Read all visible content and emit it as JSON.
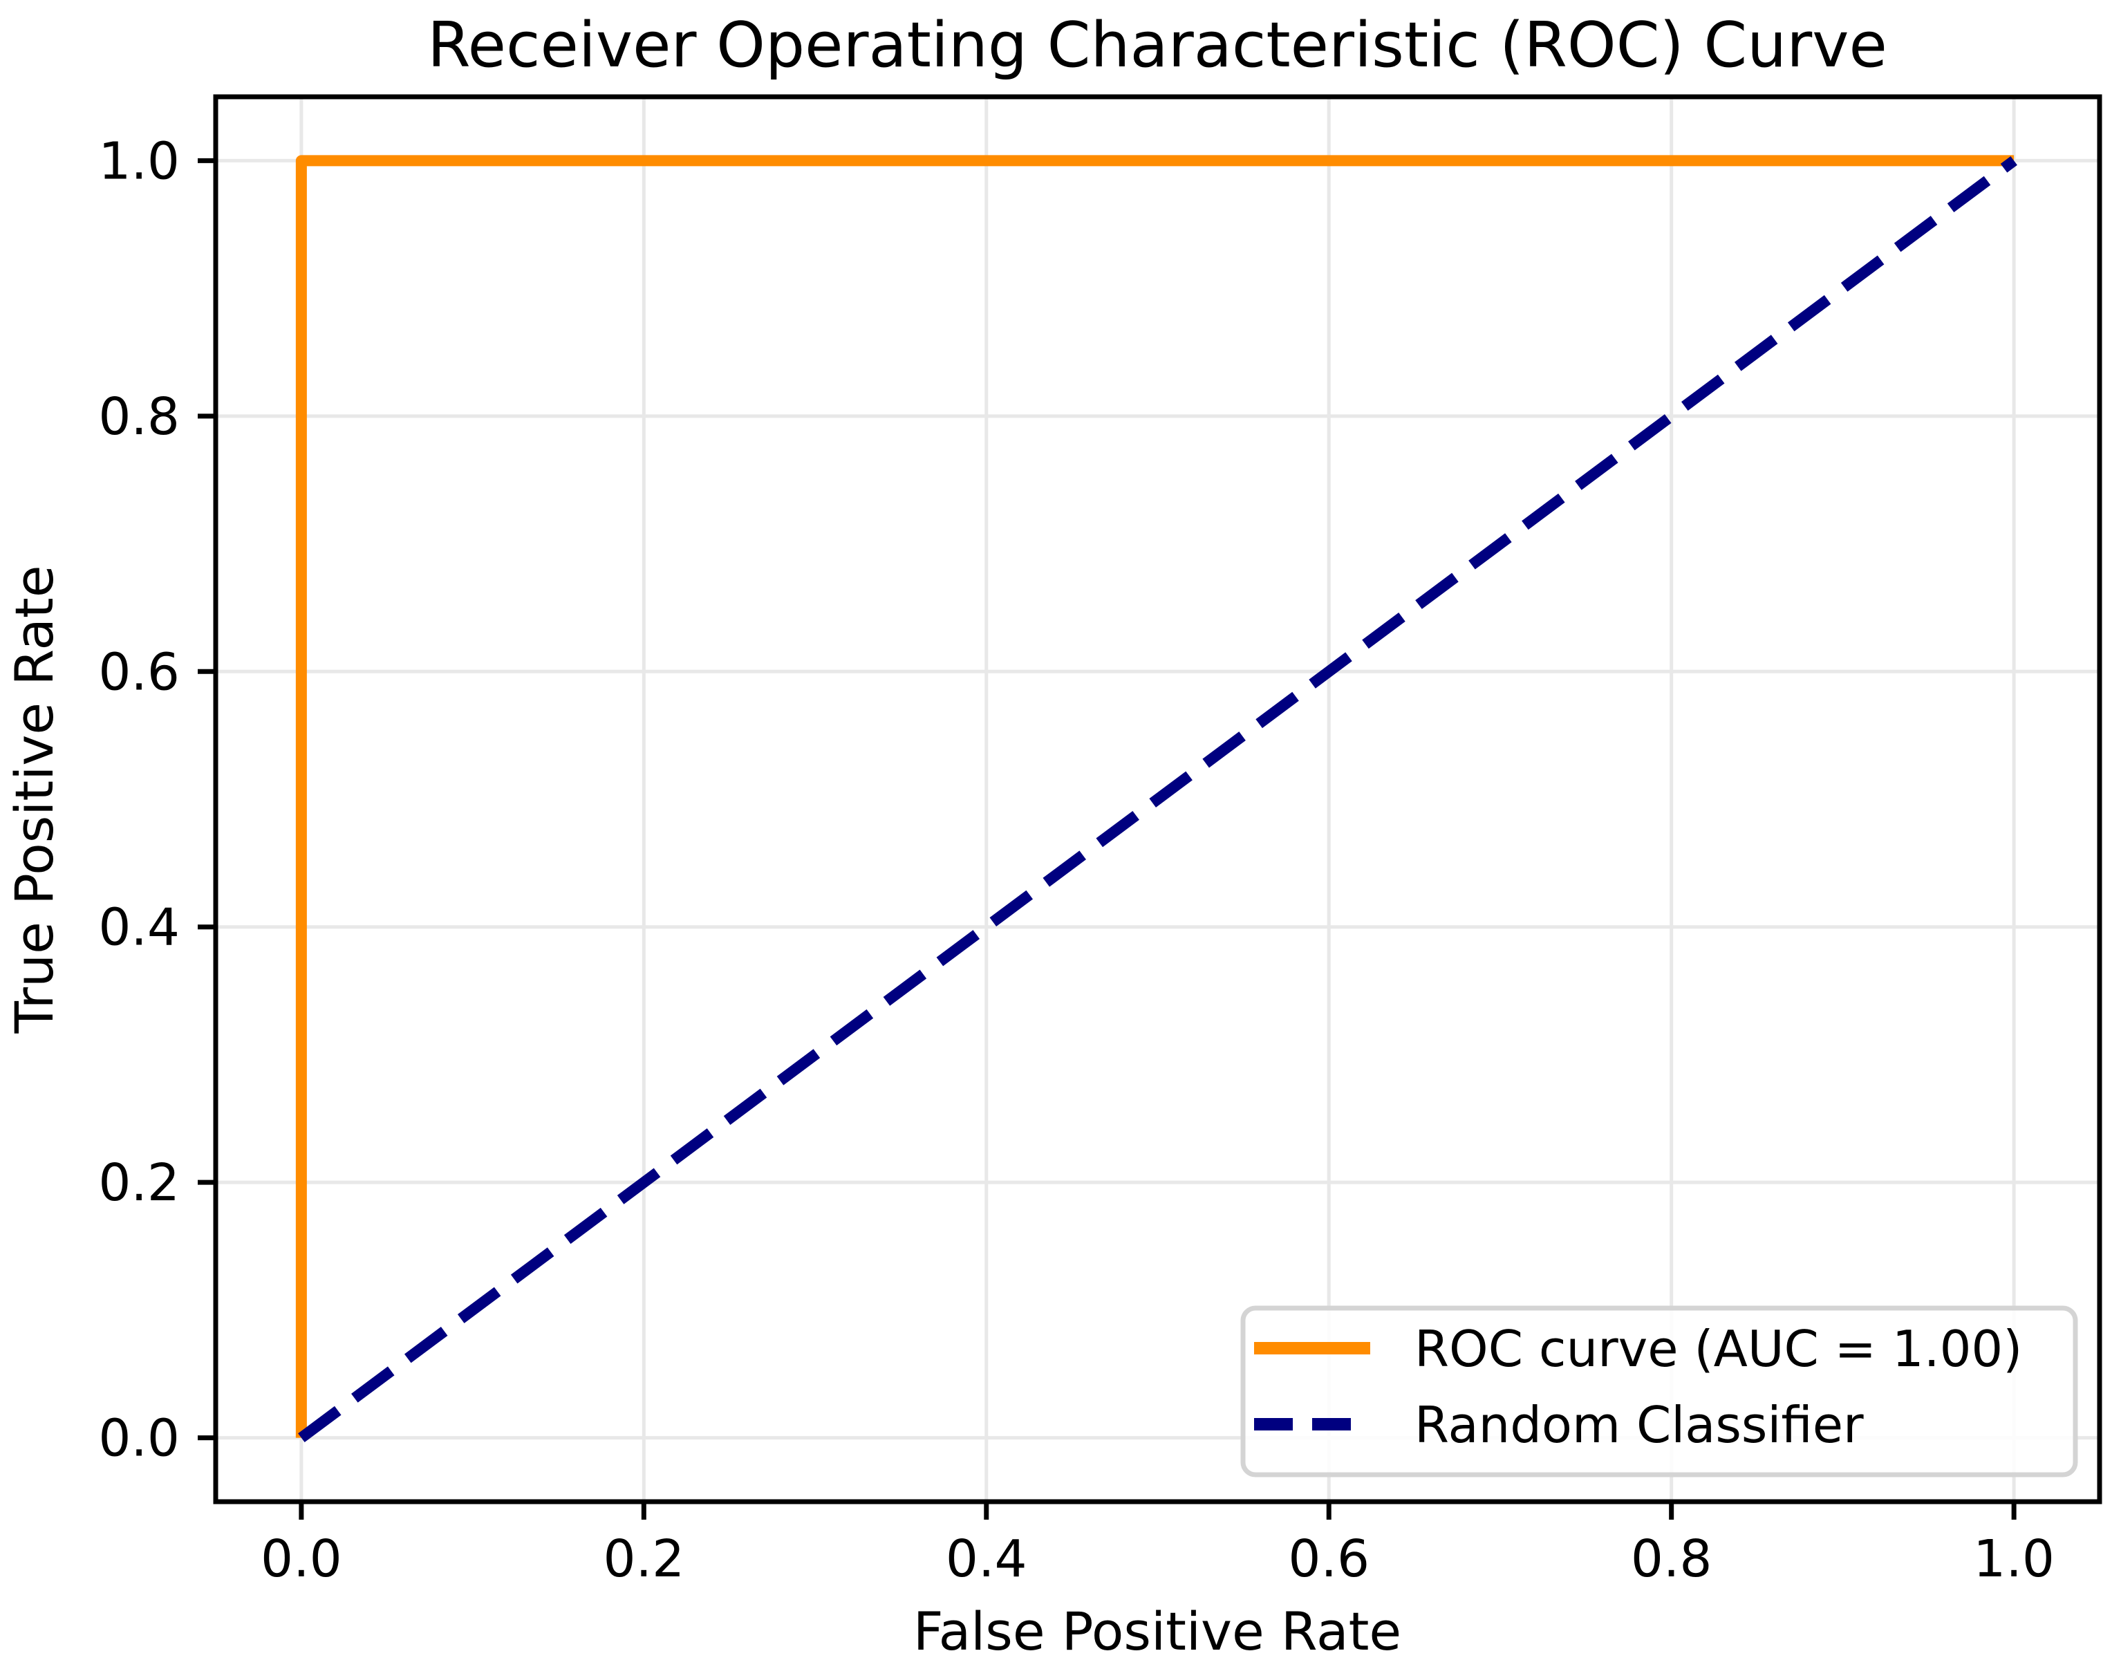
{
  "figure": {
    "background": "#ffffff",
    "spine_color": "#000000",
    "text_color": "#000000"
  },
  "chart_data": {
    "type": "line",
    "title": "Receiver Operating Characteristic (ROC) Curve",
    "xlabel": "False Positive Rate",
    "ylabel": "True Positive Rate",
    "xlim": [
      -0.05,
      1.05
    ],
    "ylim": [
      -0.05,
      1.05
    ],
    "xticks": [
      0.0,
      0.2,
      0.4,
      0.6,
      0.8,
      1.0
    ],
    "xtick_labels": [
      "0.0",
      "0.2",
      "0.4",
      "0.6",
      "0.8",
      "1.0"
    ],
    "yticks": [
      0.0,
      0.2,
      0.4,
      0.6,
      0.8,
      1.0
    ],
    "ytick_labels": [
      "0.0",
      "0.2",
      "0.4",
      "0.6",
      "0.8",
      "1.0"
    ],
    "grid": true,
    "grid_color": "#e8e8e8",
    "auc": "1.00",
    "series": [
      {
        "name": "ROC curve (AUC = 1.00)",
        "color": "#ff8c00",
        "linestyle": "solid",
        "x": [
          0.0,
          0.0,
          1.0
        ],
        "y": [
          0.0,
          1.0,
          1.0
        ]
      },
      {
        "name": "Random Classifier",
        "color": "#000080",
        "linestyle": "dashed",
        "x": [
          0.0,
          1.0
        ],
        "y": [
          0.0,
          1.0
        ]
      }
    ],
    "legend": {
      "position": "lower right",
      "border_color": "#d4d4d4",
      "background": "rgba(255,255,255,0.85)"
    }
  }
}
